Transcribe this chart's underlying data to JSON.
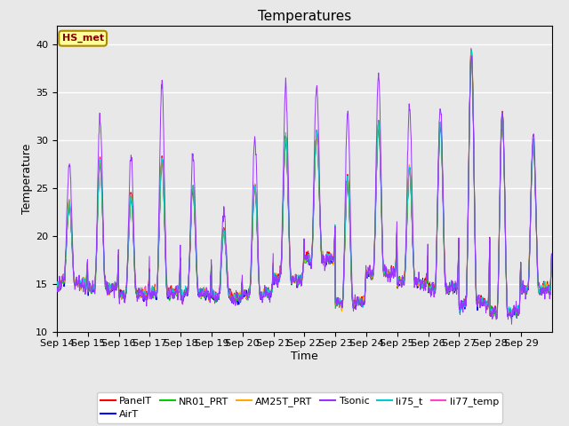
{
  "title": "Temperatures",
  "xlabel": "Time",
  "ylabel": "Temperature",
  "ylim": [
    10,
    42
  ],
  "yticks": [
    10,
    15,
    20,
    25,
    30,
    35,
    40
  ],
  "background_color": "#e8e8e8",
  "plot_bg_color": "#e8e8e8",
  "annotation_text": "HS_met",
  "annotation_box_color": "#ffff99",
  "annotation_border_color": "#aa8800",
  "annotation_text_color": "#880000",
  "series_colors": {
    "PanelT": "#ff0000",
    "AirT": "#0000ff",
    "NR01_PRT": "#00cc00",
    "AM25T_PRT": "#ffaa00",
    "Tsonic": "#9933ff",
    "li75_t": "#00cccc",
    "li77_temp": "#ff44cc"
  },
  "xtick_labels": [
    "Sep 14",
    "Sep 15",
    "Sep 16",
    "Sep 17",
    "Sep 18",
    "Sep 19",
    "Sep 20",
    "Sep 21",
    "Sep 22",
    "Sep 23",
    "Sep 24",
    "Sep 25",
    "Sep 26",
    "Sep 27",
    "Sep 28",
    "Sep 29"
  ],
  "n_days": 16,
  "pts_per_day": 96,
  "day_peaks": [
    23.5,
    28.0,
    24.0,
    28.0,
    25.0,
    20.5,
    25.0,
    30.0,
    30.5,
    26.0,
    31.5,
    27.0,
    32.0,
    39.5,
    32.5,
    30.0
  ],
  "day_mins": [
    15.0,
    14.5,
    14.0,
    14.0,
    14.0,
    13.5,
    14.0,
    15.5,
    17.5,
    13.0,
    16.0,
    15.0,
    14.5,
    13.0,
    12.0,
    14.5
  ],
  "tsonic_extra_peaks": [
    4.5,
    4.5,
    4.5,
    8.0,
    3.5,
    2.0,
    5.0,
    5.5,
    5.0,
    7.0,
    5.0,
    6.5,
    1.5,
    -0.5,
    0.5,
    0.5
  ]
}
